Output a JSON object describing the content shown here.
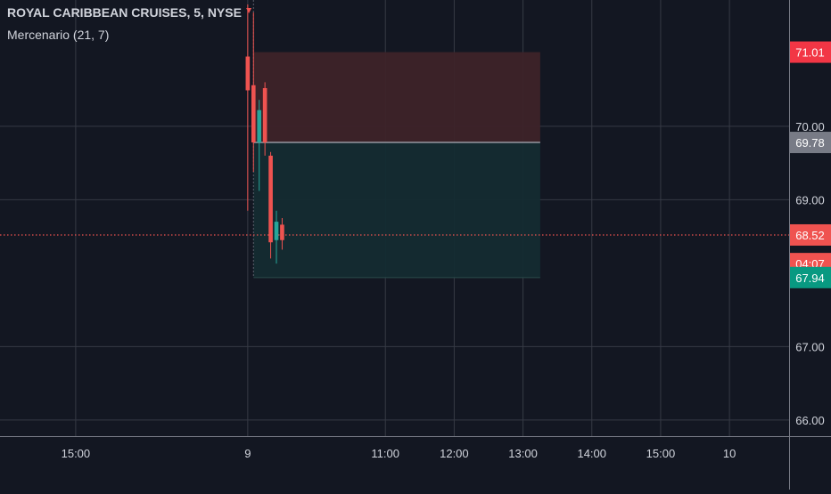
{
  "chart_data": {
    "type": "candlestick",
    "title": "ROYAL CARIBBEAN CRUISES, 5, NYSE",
    "indicator": "Mercenario (21, 7)",
    "colors": {
      "background": "#131722",
      "grid": "#363a45",
      "text": "#d1d4dc",
      "up": "#26a69a",
      "down": "#ef5350",
      "axis_line": "#787b86",
      "stop_zone": "#3d2329",
      "target_zone": "#142b31",
      "entry_line": "#9598a1",
      "gray_label": "#787b86",
      "green_label": "#089981"
    },
    "y_axis": {
      "ylim": [
        65.78,
        71.72
      ],
      "ticks": [
        "66.00",
        "67.00",
        "69.00",
        "70.00"
      ],
      "tick_values": [
        66,
        67,
        69,
        70
      ]
    },
    "x_axis": {
      "ticks": [
        "15:00",
        "9",
        "11:00",
        "12:00",
        "13:00",
        "14:00",
        "15:00",
        "10"
      ],
      "tick_values": [
        -150,
        0,
        120,
        180,
        240,
        300,
        360,
        420
      ],
      "xlim": [
        -216,
        472
      ]
    },
    "price_labels": [
      {
        "text": "71.01",
        "value": 71.01,
        "color": "#f23645",
        "kind": "high"
      },
      {
        "text": "69.78",
        "value": 69.78,
        "color": "#787b86",
        "kind": "entry"
      },
      {
        "text": "68.52",
        "value": 68.52,
        "color": "#ef5350",
        "kind": "last"
      },
      {
        "text": "04:07",
        "value": 68.13,
        "color": "#ef5350",
        "kind": "countdown"
      },
      {
        "text": "67.94",
        "value": 67.94,
        "color": "#089981",
        "kind": "target"
      }
    ],
    "last_price": 68.52,
    "candles": [
      {
        "t": 0,
        "o": 70.95,
        "h": 71.66,
        "l": 68.85,
        "c": 70.49
      },
      {
        "t": 5,
        "o": 70.56,
        "h": 71.55,
        "l": 69.38,
        "c": 69.78
      },
      {
        "t": 10,
        "o": 69.78,
        "h": 70.36,
        "l": 69.12,
        "c": 70.22
      },
      {
        "t": 15,
        "o": 70.52,
        "h": 70.6,
        "l": 69.6,
        "c": 69.78
      },
      {
        "t": 20,
        "o": 69.6,
        "h": 69.65,
        "l": 68.2,
        "c": 68.42
      },
      {
        "t": 25,
        "o": 68.45,
        "h": 68.85,
        "l": 68.13,
        "c": 68.7
      },
      {
        "t": 30,
        "o": 68.66,
        "h": 68.75,
        "l": 68.32,
        "c": 68.45
      }
    ],
    "zones": {
      "t_start": 5,
      "t_end": 255,
      "stop_top": 71.01,
      "entry": 69.78,
      "target": 67.94
    },
    "annotations": [
      {
        "label": "cursor",
        "t": 5,
        "kind": "crosshair-vertical"
      },
      {
        "label": "marker",
        "t": 1,
        "kind": "arrow-down"
      }
    ]
  }
}
